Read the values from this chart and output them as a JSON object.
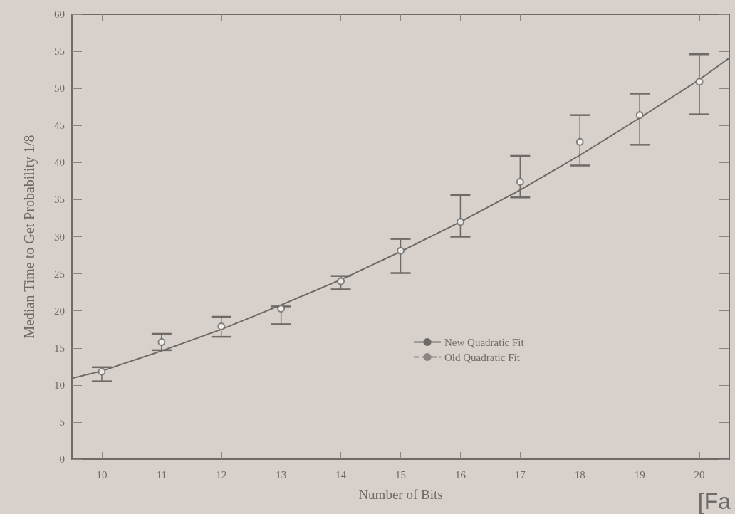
{
  "chart_data": {
    "type": "scatter",
    "xlabel": "Number of Bits",
    "ylabel": "Median Time to Get Probability 1/8",
    "annotations": [
      "[Fa"
    ],
    "xlim": [
      9.5,
      20.5
    ],
    "xticks": [
      10,
      11,
      12,
      13,
      14,
      15,
      16,
      17,
      18,
      19,
      20
    ],
    "ylim": [
      0,
      60
    ],
    "yticks": [
      0,
      5,
      10,
      15,
      20,
      25,
      30,
      35,
      40,
      45,
      50,
      55,
      60
    ],
    "grid": false,
    "legend": "bottom",
    "marker": "circle",
    "series": [
      {
        "color": "#6e6a68",
        "x": [
          10,
          11,
          12,
          13,
          14,
          15,
          16,
          17,
          18,
          19,
          20
        ],
        "values": [
          11.8,
          15.8,
          17.9,
          20.3,
          24.0,
          28.1,
          32.0,
          37.4,
          42.8,
          46.4,
          50.9
        ],
        "errors": [
          [
            10.5,
            12.4
          ],
          [
            14.7,
            16.9
          ],
          [
            16.5,
            19.2
          ],
          [
            18.2,
            20.6
          ],
          [
            22.9,
            24.7
          ],
          [
            25.1,
            29.7
          ],
          [
            30.0,
            35.6
          ],
          [
            35.3,
            40.9
          ],
          [
            39.6,
            46.4
          ],
          [
            42.4,
            49.3
          ],
          [
            46.5,
            54.6
          ]
        ]
      },
      {
        "type": "line",
        "name": "Old Quadratic Fit",
        "color": "#8a8583",
        "line_style": "dashed",
        "marker": "none",
        "x": [
          9.5,
          10,
          11,
          12,
          13,
          14,
          15,
          16,
          17,
          18,
          19,
          20,
          20.5
        ],
        "values": [
          10.9,
          11.9,
          14.6,
          17.5,
          20.8,
          24.2,
          28.0,
          32.0,
          36.3,
          41.0,
          46.0,
          51.2,
          54.1
        ]
      },
      {
        "type": "line",
        "name": "New Quadratic Fit",
        "color": "#6e6a68",
        "line_style": "solid",
        "marker": "none",
        "x": [
          9.5,
          10,
          11,
          12,
          13,
          14,
          15,
          16,
          17,
          18,
          19,
          20,
          20.5
        ],
        "values": [
          10.9,
          11.9,
          14.6,
          17.5,
          20.8,
          24.2,
          28.0,
          32.0,
          36.3,
          41.0,
          46.0,
          51.2,
          54.1
        ]
      }
    ]
  }
}
